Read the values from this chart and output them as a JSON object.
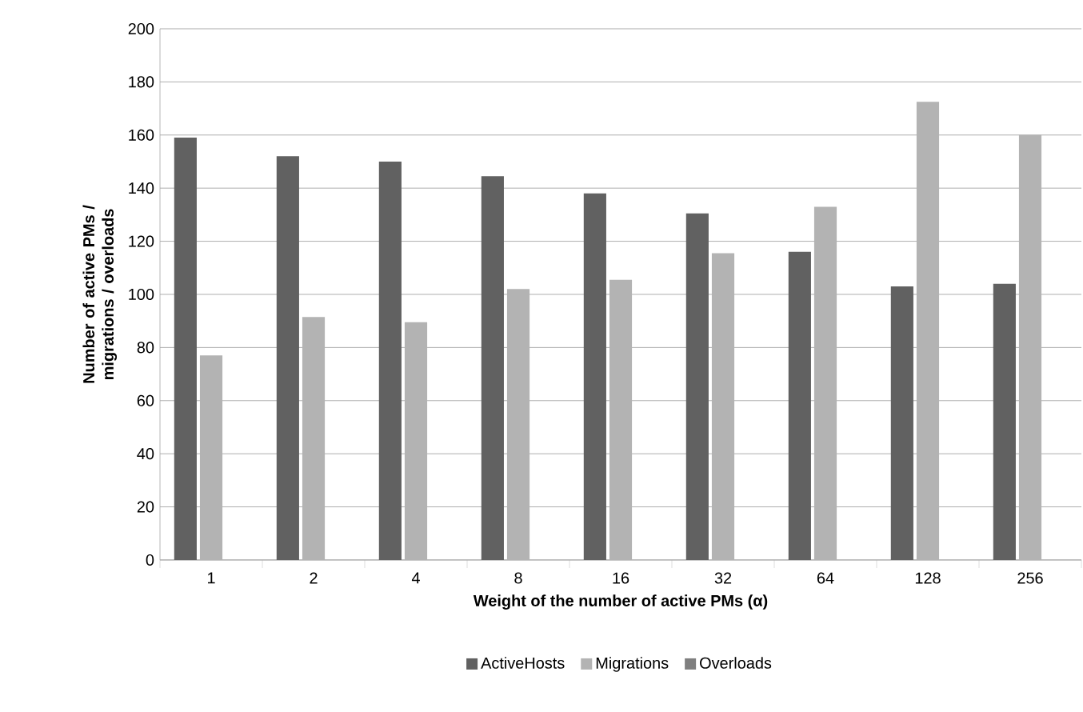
{
  "chart_data": {
    "type": "bar",
    "xlabel": "Weight of the number of active PMs (α)",
    "ylabel": "Number of active PMs / migrations / overloads",
    "categories": [
      "1",
      "2",
      "4",
      "8",
      "16",
      "32",
      "64",
      "128",
      "256"
    ],
    "series": [
      {
        "name": "ActiveHosts",
        "color": "#616161",
        "values": [
          159,
          152,
          150,
          144.5,
          138,
          130.5,
          116,
          103,
          104
        ]
      },
      {
        "name": "Migrations",
        "color": "#b3b3b3",
        "values": [
          77,
          91.5,
          89.5,
          102,
          105.5,
          115.5,
          133,
          172.5,
          160
        ]
      },
      {
        "name": "Overloads",
        "color": "#7f7f7f",
        "values": [
          0,
          0,
          0,
          0,
          0,
          0,
          0,
          0,
          0
        ]
      }
    ],
    "ylim": [
      0,
      200
    ],
    "yticks": [
      0,
      20,
      40,
      60,
      80,
      100,
      120,
      140,
      160,
      180,
      200
    ],
    "grid": "y",
    "legend": "bottom"
  }
}
